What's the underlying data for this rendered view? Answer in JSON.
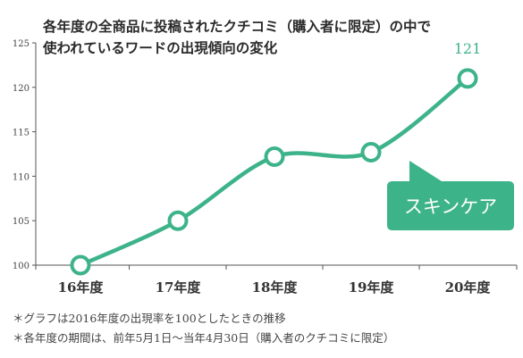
{
  "title_lines": [
    "各年度の全商品に投稿されたクチコミ（購入者に限定）の中で",
    "使われているワードの出現傾向の変化"
  ],
  "notes": [
    "＊グラフは2016年度の出現率を100としたときの推移",
    "＊各年度の期間は、前年5月1日〜当年4月30日（購入者のクチコミに限定）"
  ],
  "colors": {
    "series": "#3db38a",
    "axis": "#555555",
    "callout": "#3db38a"
  },
  "chart_data": {
    "type": "line",
    "categories": [
      "16年度",
      "17年度",
      "18年度",
      "19年度",
      "20年度"
    ],
    "series": [
      {
        "name": "スキンケア",
        "values": [
          100,
          105,
          112.2,
          112.7,
          121
        ]
      }
    ],
    "ylim": [
      100,
      125
    ],
    "y_ticks": [
      100,
      105,
      110,
      115,
      120,
      125
    ],
    "data_labels": [
      {
        "index": 4,
        "text": "121"
      }
    ],
    "grid": false
  }
}
